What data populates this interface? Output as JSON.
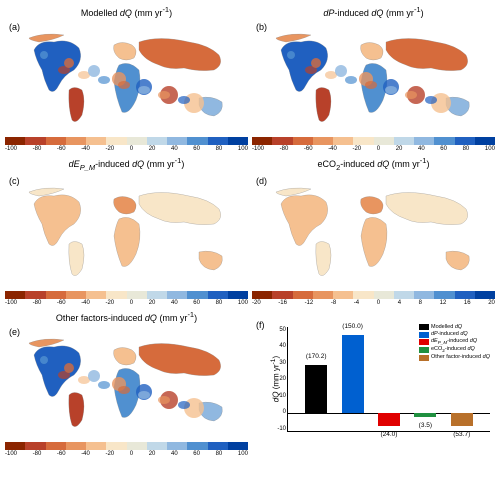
{
  "colormap_a": [
    "#8b2500",
    "#b8412a",
    "#d66b3c",
    "#e89560",
    "#f5c090",
    "#f8e6c8",
    "#e8e8d8",
    "#c0d8e8",
    "#90b8e0",
    "#5090d0",
    "#2060c0",
    "#0040a0"
  ],
  "ticks_a": [
    "-100",
    "-80",
    "-60",
    "-40",
    "-20",
    "0",
    "20",
    "40",
    "60",
    "80",
    "100"
  ],
  "colormap_d": [
    "#8b2500",
    "#b8412a",
    "#d66b3c",
    "#e89560",
    "#f5c090",
    "#f8e6c8",
    "#e8e8d8",
    "#c0d8e8",
    "#90b8e0",
    "#5090d0",
    "#2060c0",
    "#0040a0"
  ],
  "ticks_d": [
    "-20",
    "-16",
    "-12",
    "-8",
    "-4",
    "0",
    "4",
    "8",
    "12",
    "16",
    "20"
  ],
  "panels": {
    "a": {
      "label": "(a)",
      "title": "Modelled <i>dQ</i> (mm yr<sup>-1</sup>)",
      "pattern": "mixed"
    },
    "b": {
      "label": "(b)",
      "title": "<i>dP</i>-induced <i>dQ</i> (mm yr<sup>-1</sup>)",
      "pattern": "mixed"
    },
    "c": {
      "label": "(c)",
      "title": "<i>dE<sub>P_M</sub></i>-induced <i>dQ</i> (mm yr<sup>-1</sup>)",
      "pattern": "warm"
    },
    "d": {
      "label": "(d)",
      "title": "eCO<sub>2</sub>-induced <i>dQ</i> (mm yr<sup>-1</sup>)",
      "pattern": "warm"
    },
    "e": {
      "label": "(e)",
      "title": "Other factors-induced <i>dQ</i> (mm yr<sup>-1</sup>)",
      "pattern": "mixed"
    },
    "f": {
      "label": "(f)"
    }
  },
  "bar_chart": {
    "ylabel": "<i>dQ</i> (mm yr<sup>-1</sup>)",
    "ylim": [
      -10,
      50
    ],
    "yticks": [
      "50",
      "40",
      "30",
      "20",
      "10",
      "0",
      "-10"
    ],
    "bars": [
      {
        "label": "(170.2)",
        "val": 28,
        "color": "#000000"
      },
      {
        "label": "(150.0)",
        "val": 45,
        "color": "#0060d0"
      },
      {
        "label": "(24.0)",
        "val": -7,
        "color": "#e00000"
      },
      {
        "label": "(3.5)",
        "val": -2,
        "color": "#209040"
      },
      {
        "label": "(53.7)",
        "val": -7,
        "color": "#b8702a"
      }
    ],
    "legend": [
      {
        "c": "#000000",
        "t": "Modelled <i>dQ</i>"
      },
      {
        "c": "#0060d0",
        "t": "<i>dP</i>-induced <i>dQ</i>"
      },
      {
        "c": "#e00000",
        "t": "<i>dE<sub>P_M</sub></i>-induced <i>dQ</i>"
      },
      {
        "c": "#209040",
        "t": "eCO<sub>2</sub>-induced <i>dQ</i>"
      },
      {
        "c": "#b8702a",
        "t": "Other factor-induced <i>dQ</i>"
      }
    ]
  }
}
